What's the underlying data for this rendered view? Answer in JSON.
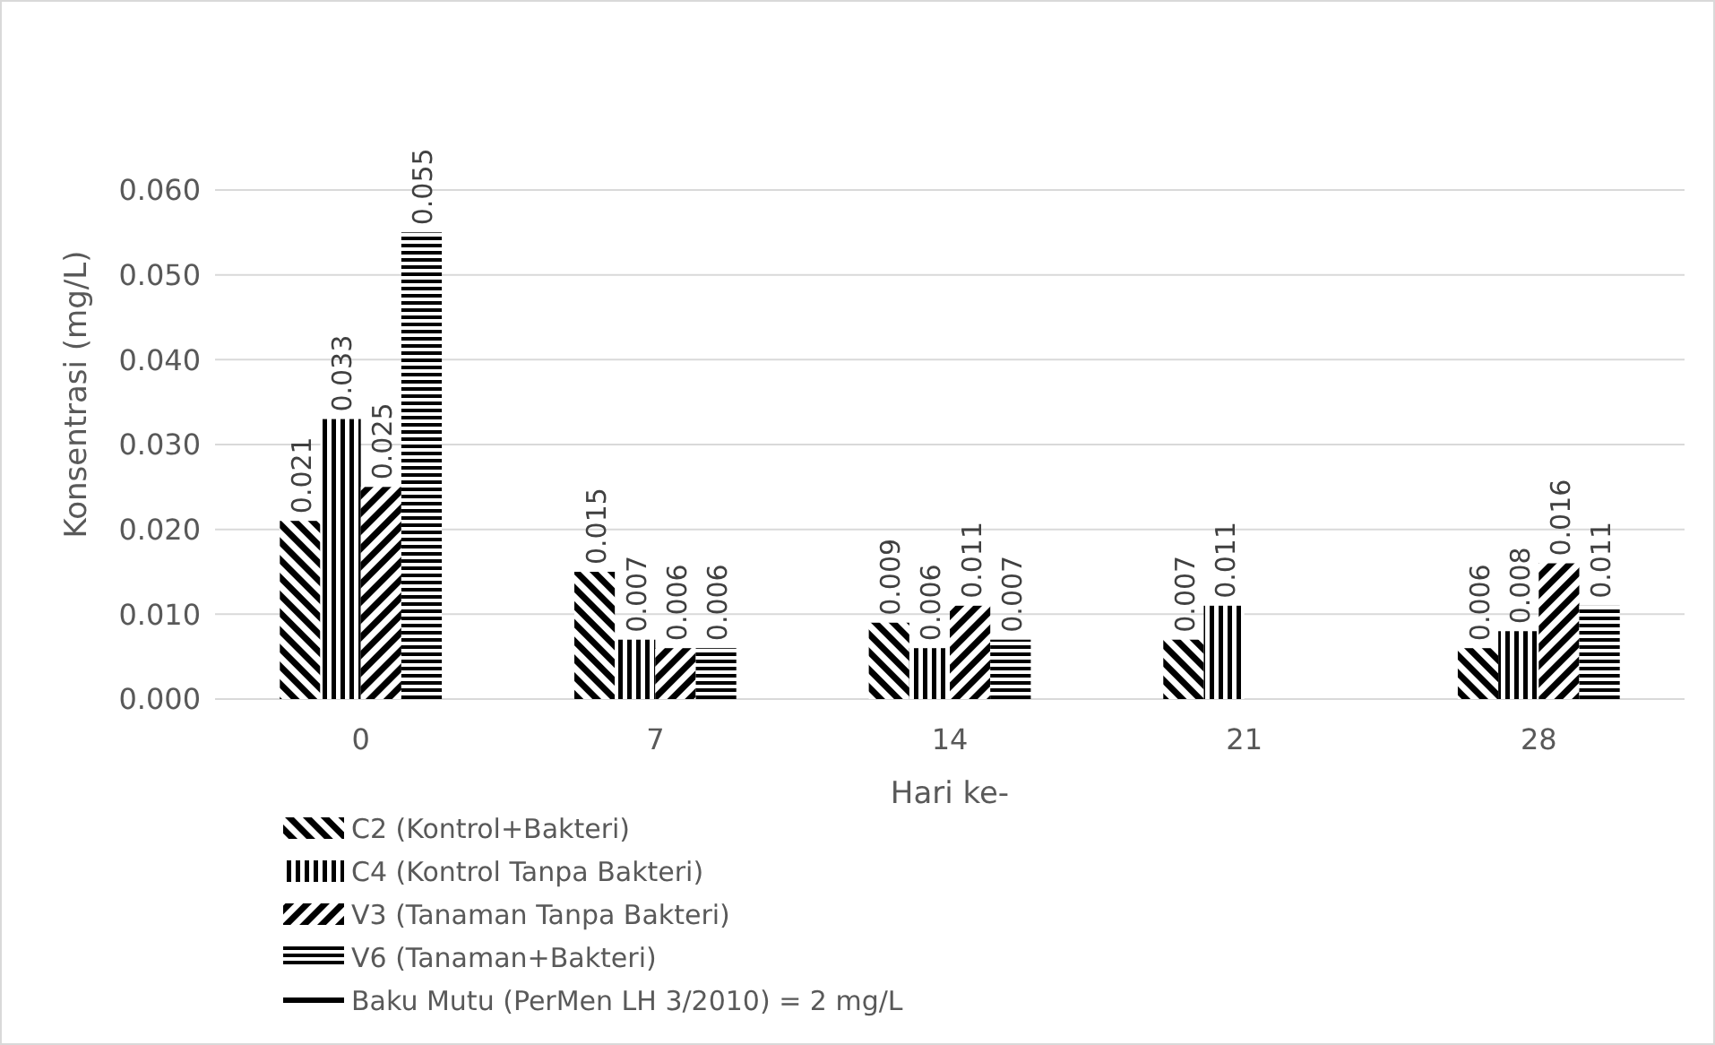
{
  "chart_data": {
    "type": "bar",
    "xlabel": "Hari ke-",
    "ylabel": "Konsentrasi (mg/L)",
    "categories": [
      "0",
      "7",
      "14",
      "21",
      "28"
    ],
    "series": [
      {
        "name": "C2 (Kontrol+Bakteri)",
        "color": "#000000",
        "values": [
          0.021,
          0.015,
          0.009,
          0.007,
          0.006
        ]
      },
      {
        "name": "C4 (Kontrol Tanpa Bakteri)",
        "color": "#000000",
        "values": [
          0.033,
          0.007,
          0.006,
          0.011,
          0.008
        ]
      },
      {
        "name": "V3 (Tanaman Tanpa Bakteri)",
        "color": "#000000",
        "values": [
          0.025,
          0.006,
          0.011,
          null,
          0.016
        ]
      },
      {
        "name": "V6 (Tanaman+Bakteri)",
        "color": "#000000",
        "values": [
          0.055,
          0.006,
          0.007,
          null,
          0.011
        ]
      },
      {
        "name": "Baku Mutu (PerMen LH 3/2010) = 2 mg/L",
        "type": "line",
        "color": "#000000",
        "values": [
          null,
          null,
          null,
          null,
          null
        ]
      }
    ],
    "ylim": [
      0,
      0.06
    ],
    "yticks": [
      {
        "value": 0,
        "label": "0.000"
      },
      {
        "value": 0.01,
        "label": "0.010"
      },
      {
        "value": 0.02,
        "label": "0.020"
      },
      {
        "value": 0.03,
        "label": "0.030"
      },
      {
        "value": 0.04,
        "label": "0.040"
      },
      {
        "value": 0.05,
        "label": "0.050"
      },
      {
        "value": 0.06,
        "label": "0.060"
      }
    ],
    "grid": "y",
    "legend": "bottom left",
    "data_labels": true
  }
}
